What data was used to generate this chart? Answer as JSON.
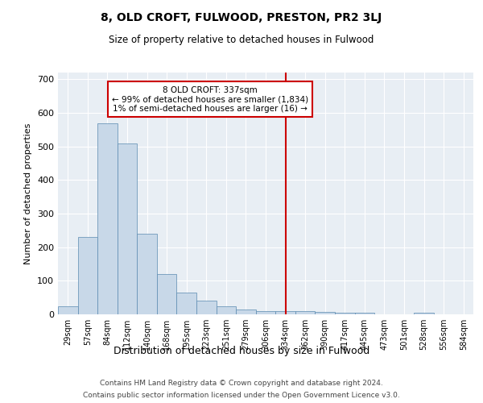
{
  "title": "8, OLD CROFT, FULWOOD, PRESTON, PR2 3LJ",
  "subtitle": "Size of property relative to detached houses in Fulwood",
  "xlabel": "Distribution of detached houses by size in Fulwood",
  "ylabel": "Number of detached properties",
  "categories": [
    "29sqm",
    "57sqm",
    "84sqm",
    "112sqm",
    "140sqm",
    "168sqm",
    "195sqm",
    "223sqm",
    "251sqm",
    "279sqm",
    "306sqm",
    "334sqm",
    "362sqm",
    "390sqm",
    "417sqm",
    "445sqm",
    "473sqm",
    "501sqm",
    "528sqm",
    "556sqm",
    "584sqm"
  ],
  "values": [
    25,
    230,
    570,
    510,
    240,
    120,
    65,
    40,
    25,
    15,
    10,
    10,
    10,
    8,
    5,
    5,
    0,
    0,
    5,
    0,
    0
  ],
  "bar_color": "#c8d8e8",
  "bar_edge_color": "#5a8ab0",
  "highlight_index": 11,
  "annotation_line1": "8 OLD CROFT: 337sqm",
  "annotation_line2": "← 99% of detached houses are smaller (1,834)",
  "annotation_line3": "1% of semi-detached houses are larger (16) →",
  "annotation_box_color": "#cc0000",
  "ylim": [
    0,
    720
  ],
  "yticks": [
    0,
    100,
    200,
    300,
    400,
    500,
    600,
    700
  ],
  "bg_color": "#e8eef4",
  "footer_line1": "Contains HM Land Registry data © Crown copyright and database right 2024.",
  "footer_line2": "Contains public sector information licensed under the Open Government Licence v3.0."
}
